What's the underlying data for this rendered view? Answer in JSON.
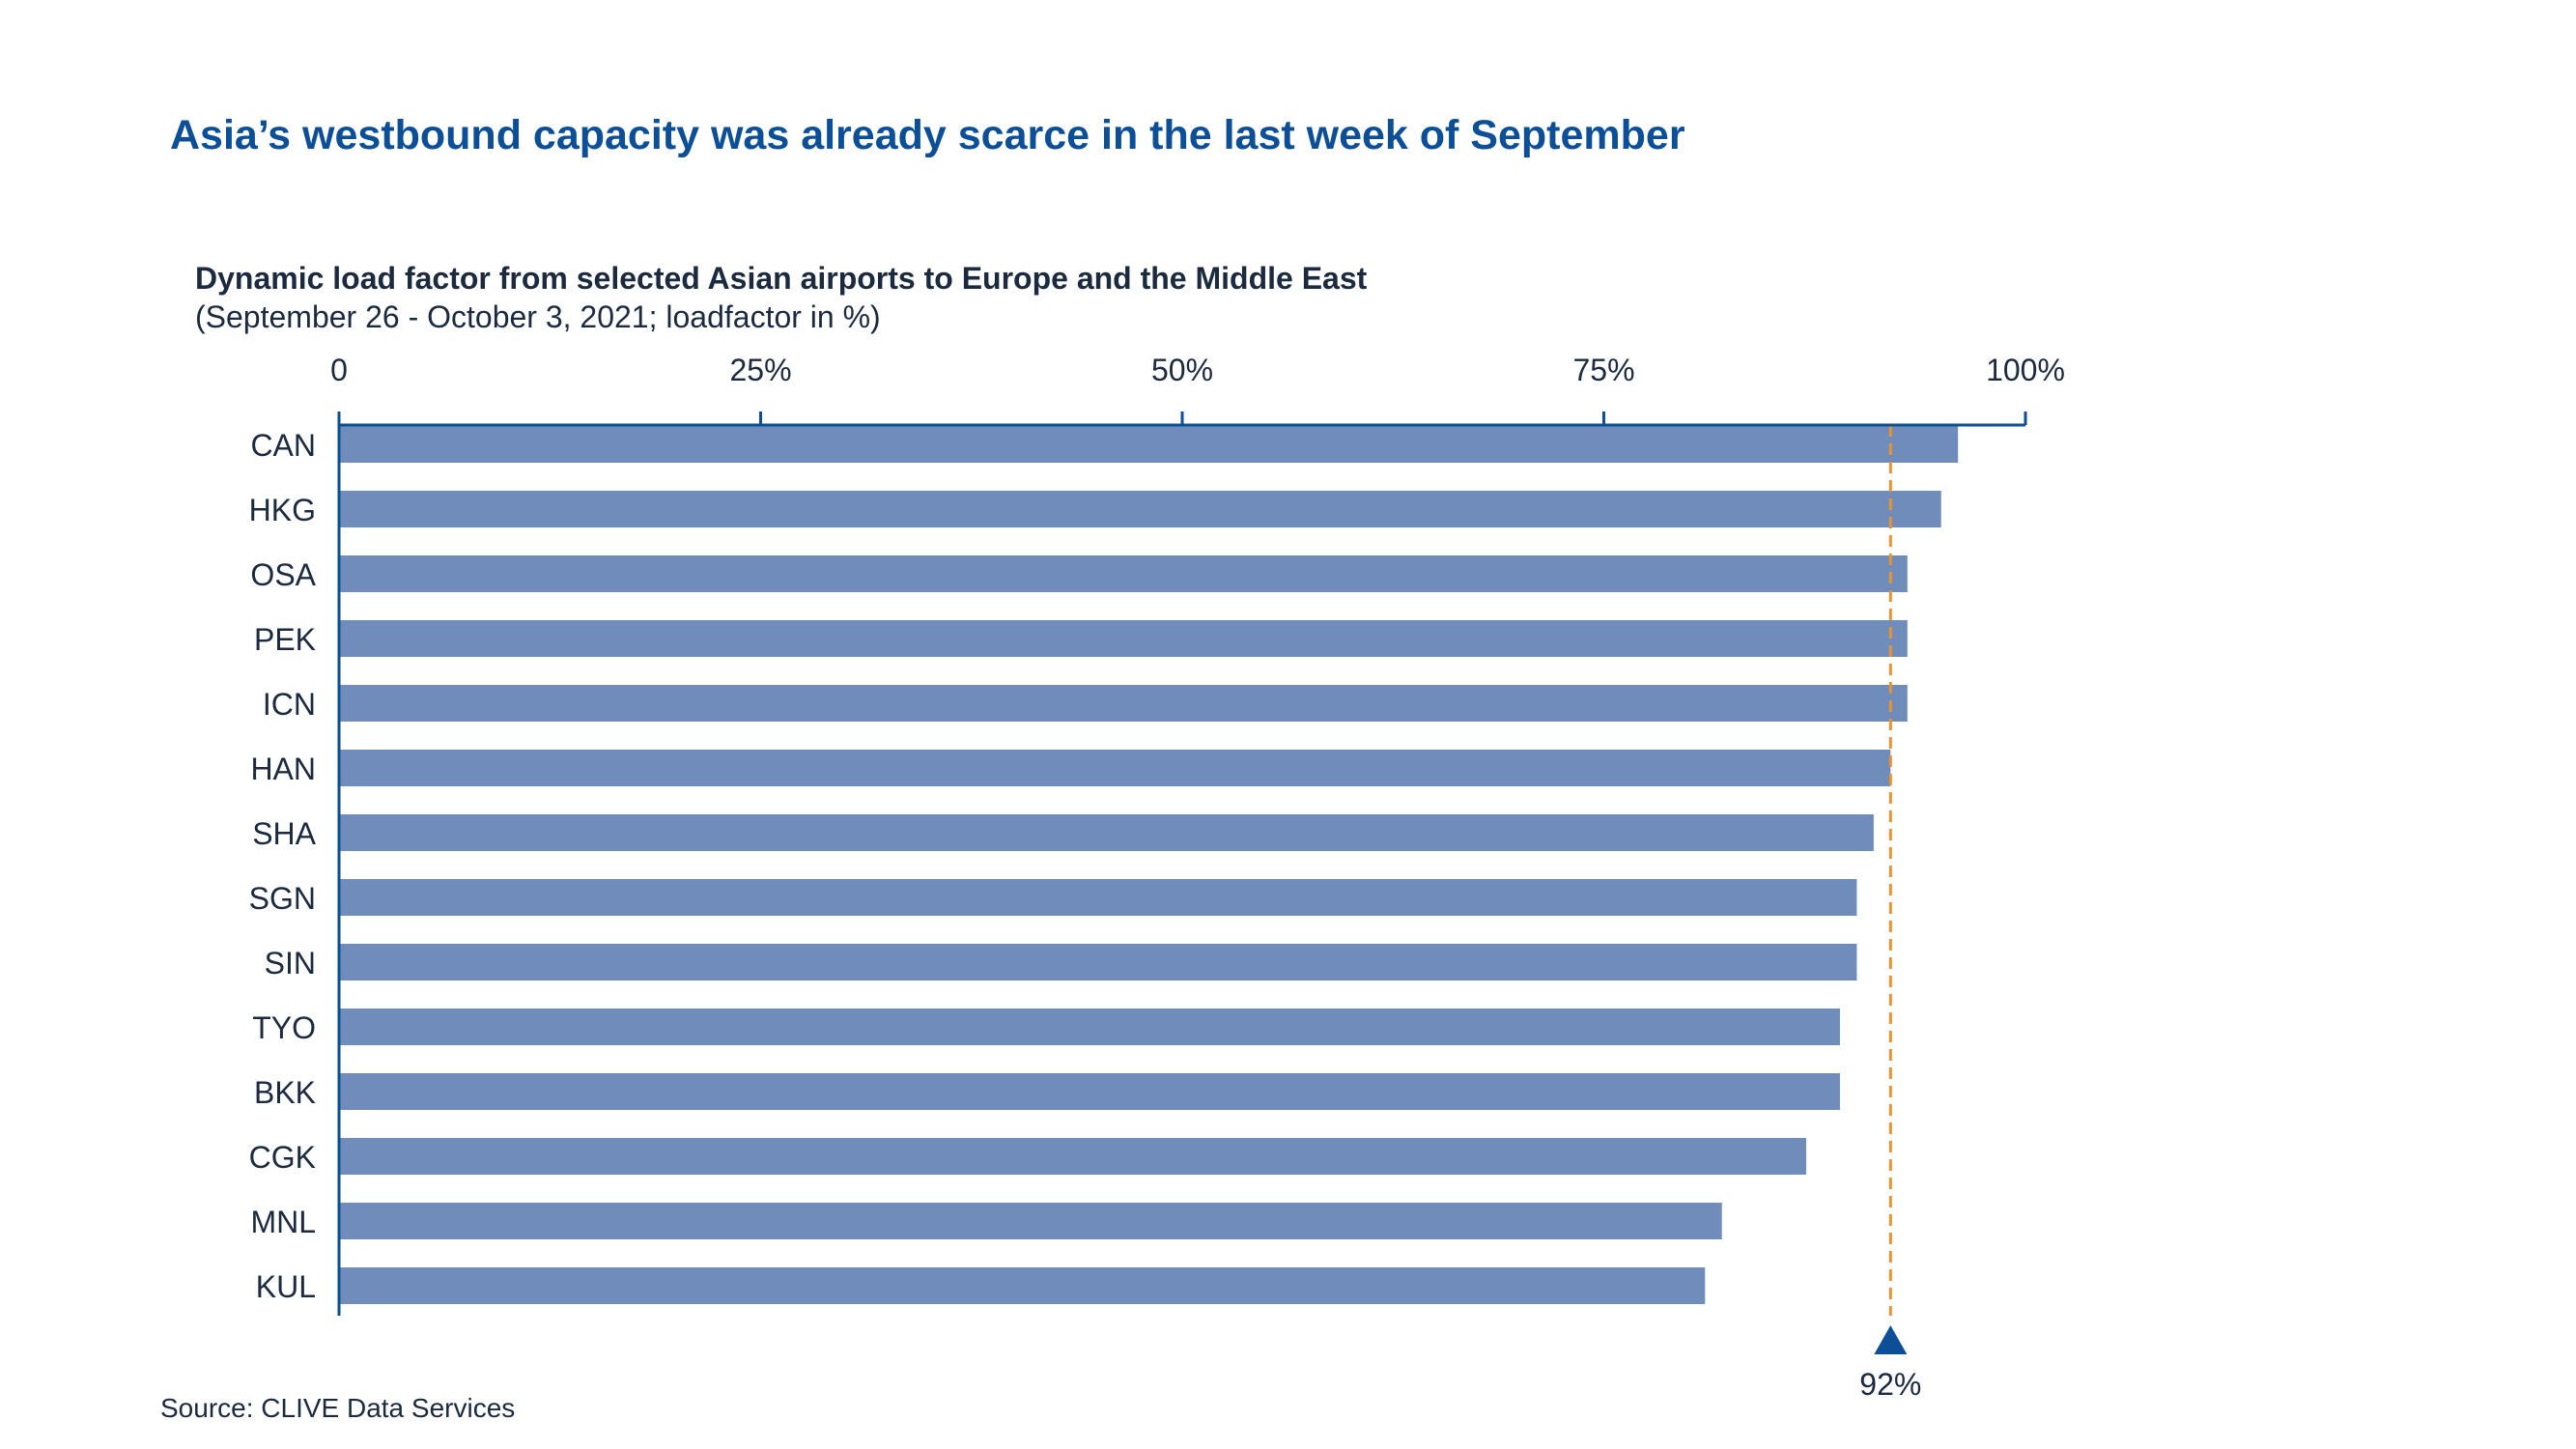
{
  "headline": "Asia’s westbound capacity was already scarce in the last week of September",
  "source": "Source: CLIVE Data Services",
  "chart_data": {
    "type": "bar",
    "orientation": "horizontal",
    "title": "Dynamic load factor from selected Asian airports to Europe and the Middle East",
    "subtitle": "(September 26 - October 3, 2021; loadfactor in %)",
    "categories": [
      "CAN",
      "HKG",
      "OSA",
      "PEK",
      "ICN",
      "HAN",
      "SHA",
      "SGN",
      "SIN",
      "TYO",
      "BKK",
      "CGK",
      "MNL",
      "KUL"
    ],
    "values": [
      96,
      95,
      93,
      93,
      93,
      92,
      91,
      90,
      90,
      89,
      89,
      87,
      82,
      81
    ],
    "xlim": [
      0,
      100
    ],
    "x_ticks": [
      0,
      25,
      50,
      75,
      100
    ],
    "x_tick_labels": [
      "0",
      "25%",
      "50%",
      "75%",
      "100%"
    ],
    "x_axis_position": "top",
    "grid": false,
    "legend": "none",
    "reference_line": {
      "value": 92,
      "label": "92%",
      "style": "dashed",
      "color": "#e8932f"
    },
    "colors": {
      "bar": "#6f8cbb",
      "axis": "#0d4f96",
      "text": "#1b2a3f",
      "marker": "#0d4f96"
    }
  }
}
